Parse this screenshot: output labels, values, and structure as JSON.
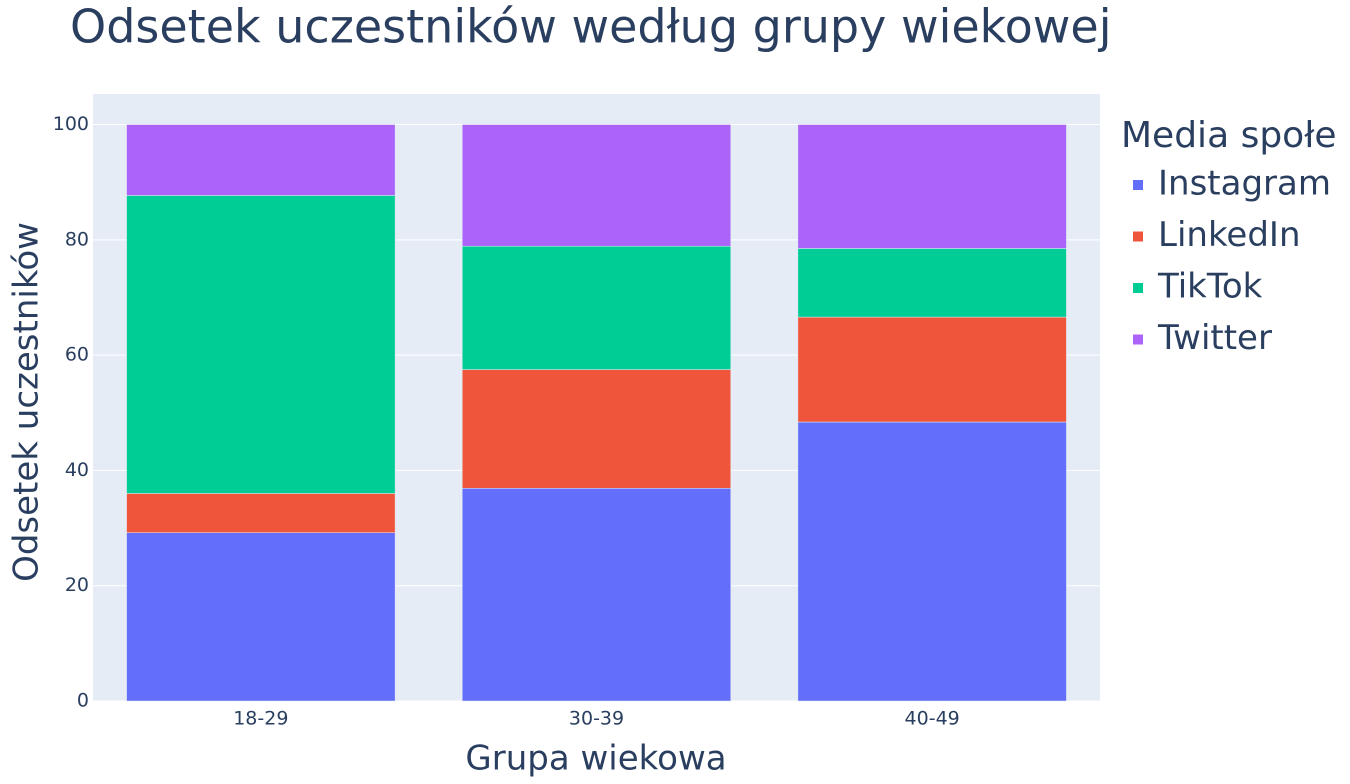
{
  "chart_data": {
    "type": "stacked_bar",
    "title": "Odsetek uczestników według grupy wiekowej",
    "x_label": "Grupa wiekowa",
    "y_label": "Odsetek uczestników",
    "legend_title": "Media społe",
    "categories": [
      "18-29",
      "30-39",
      "40-49"
    ],
    "series": [
      {
        "name": "Instagram",
        "color": "#636efa",
        "values": [
          29.2,
          36.9,
          48.4
        ]
      },
      {
        "name": "LinkedIn",
        "color": "#ef553b",
        "values": [
          6.8,
          20.6,
          18.2
        ]
      },
      {
        "name": "TikTok",
        "color": "#00cc96",
        "values": [
          51.7,
          21.4,
          11.9
        ]
      },
      {
        "name": "Twitter",
        "color": "#ab63fa",
        "values": [
          12.3,
          21.1,
          21.5
        ]
      }
    ],
    "ylim": [
      0,
      105.3
    ],
    "yticks": [
      0,
      20,
      40,
      60,
      80,
      100
    ],
    "grid": true
  }
}
